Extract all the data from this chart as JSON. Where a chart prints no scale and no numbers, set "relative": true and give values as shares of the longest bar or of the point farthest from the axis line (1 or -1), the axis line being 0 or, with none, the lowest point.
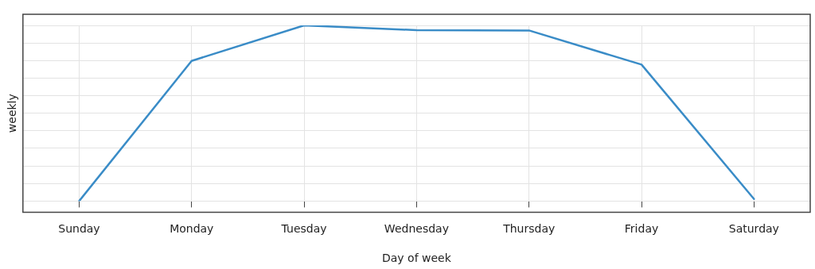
{
  "chart_data": {
    "type": "line",
    "xlabel": "Day of week",
    "ylabel": "weekly",
    "relative": true,
    "grid": true,
    "legend": false,
    "marker": "none",
    "line_style": "solid",
    "categories": [
      "Sunday",
      "Monday",
      "Tuesday",
      "Wednesday",
      "Thursday",
      "Friday",
      "Saturday"
    ],
    "series": [
      {
        "color": "#3a8cc7",
        "values": [
          0,
          0.798,
          1,
          0.973,
          0.971,
          0.777,
          0.012
        ]
      }
    ]
  }
}
